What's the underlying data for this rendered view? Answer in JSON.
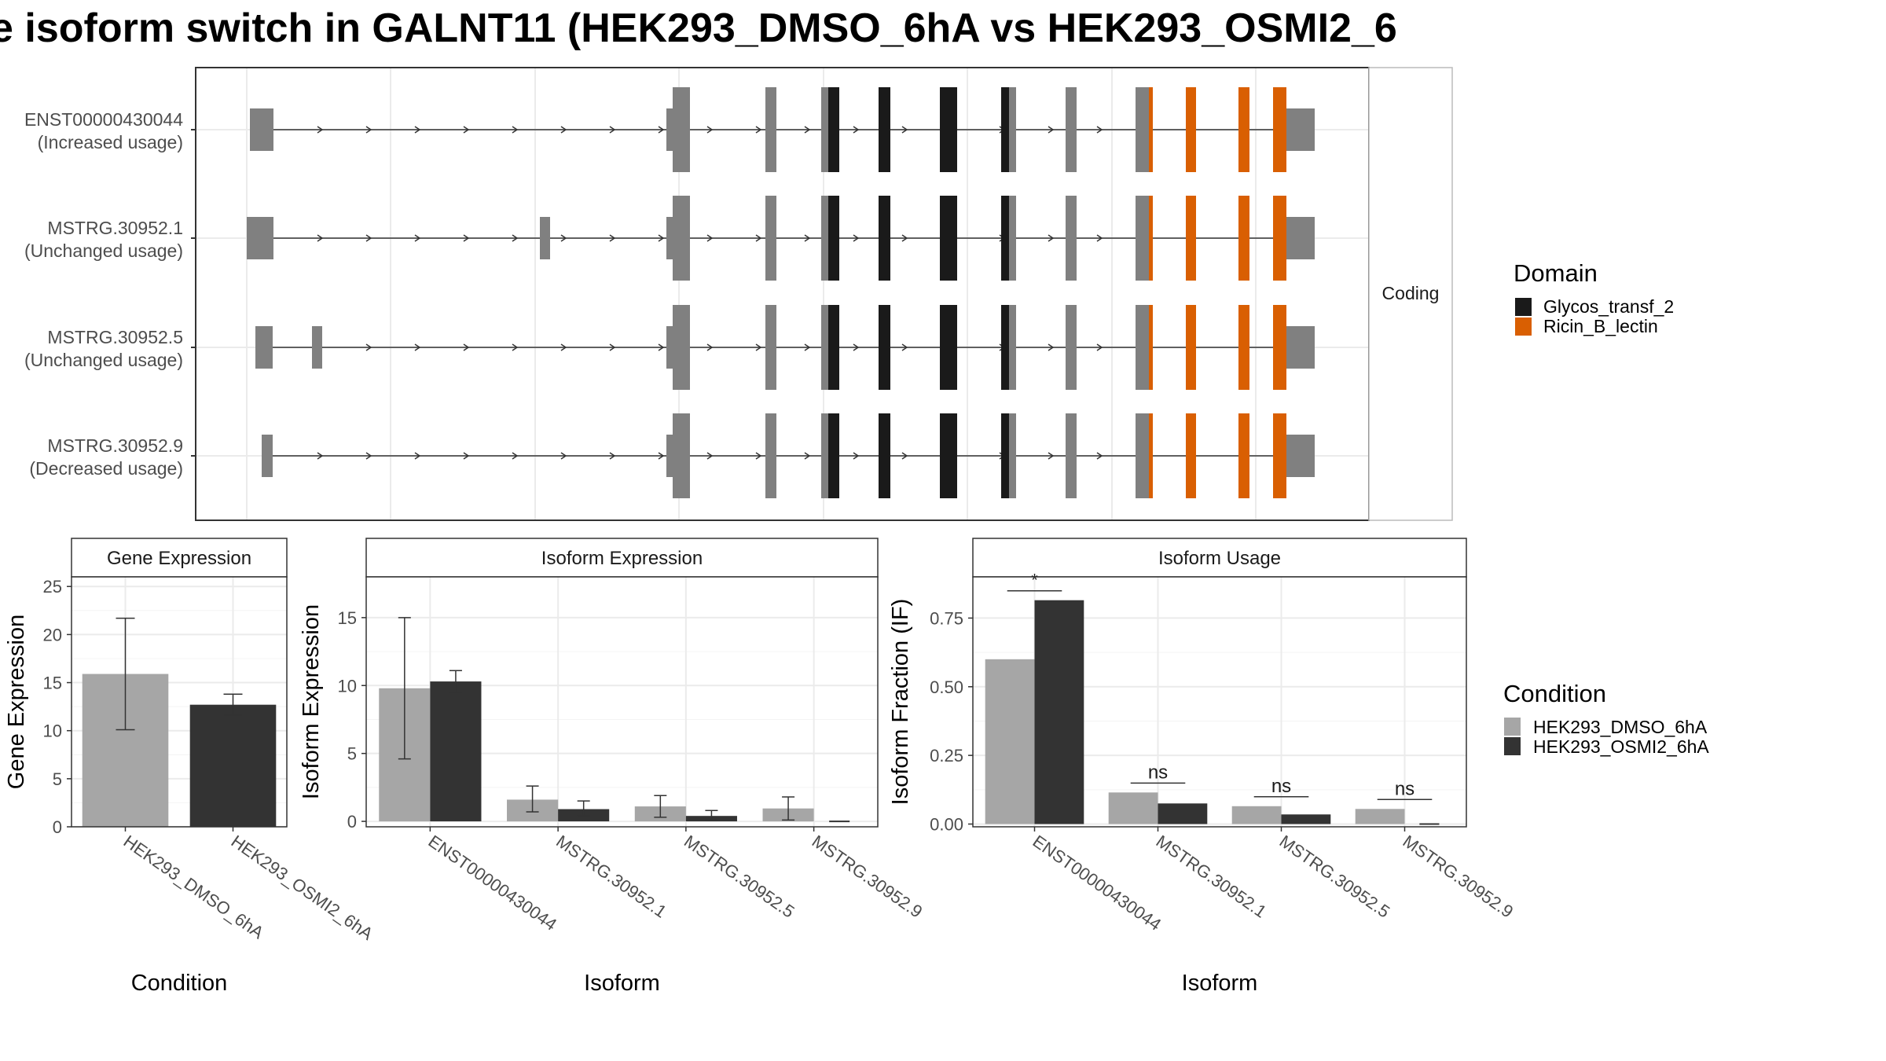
{
  "title": "e isoform switch in GALNT11 (HEK293_DMSO_6hA vs HEK293_OSMI2_6",
  "colors": {
    "dmso": "#a6a6a6",
    "osmi": "#333333",
    "exon": "#808080",
    "glycos": "#1a1a1a",
    "ricin": "#d95f02"
  },
  "structure": {
    "facet_label": "Coding",
    "transcripts": [
      {
        "id": "ENST00000430044",
        "usage": "(Increased usage)"
      },
      {
        "id": "MSTRG.30952.1",
        "usage": "(Unchanged usage)"
      },
      {
        "id": "MSTRG.30952.5",
        "usage": "(Unchanged usage)"
      },
      {
        "id": "MSTRG.30952.9",
        "usage": "(Decreased usage)"
      }
    ]
  },
  "legend_domain": {
    "title": "Domain",
    "items": [
      {
        "label": "Glycos_transf_2",
        "color": "#1a1a1a"
      },
      {
        "label": "Ricin_B_lectin",
        "color": "#d95f02"
      }
    ]
  },
  "legend_condition": {
    "title": "Condition",
    "items": [
      {
        "label": "HEK293_DMSO_6hA",
        "color": "#a6a6a6"
      },
      {
        "label": "HEK293_OSMI2_6hA",
        "color": "#333333"
      }
    ]
  },
  "chart_data": [
    {
      "type": "bar",
      "panel": "Gene Expression",
      "categories": [
        "HEK293_DMSO_6hA",
        "HEK293_OSMI2_6hA"
      ],
      "values": [
        15.9,
        12.7
      ],
      "errors": [
        [
          10.1,
          21.7
        ],
        [
          11.6,
          13.8
        ]
      ],
      "ylim": [
        0,
        26
      ],
      "yticks": [
        0,
        5,
        10,
        15,
        20,
        25
      ],
      "xlabel": "Condition",
      "ylabel": "Gene Expression"
    },
    {
      "type": "bar",
      "panel": "Isoform Expression",
      "categories": [
        "ENST00000430044",
        "MSTRG.30952.1",
        "MSTRG.30952.5",
        "MSTRG.30952.9"
      ],
      "series": [
        {
          "name": "HEK293_DMSO_6hA",
          "values": [
            9.8,
            1.6,
            1.1,
            0.95
          ],
          "errors": [
            [
              4.6,
              15.0
            ],
            [
              0.7,
              2.6
            ],
            [
              0.3,
              1.9
            ],
            [
              0.1,
              1.8
            ]
          ]
        },
        {
          "name": "HEK293_OSMI2_6hA",
          "values": [
            10.3,
            0.9,
            0.4,
            0.0
          ],
          "errors": [
            [
              9.5,
              11.1
            ],
            [
              0.4,
              1.5
            ],
            [
              0.1,
              0.8
            ],
            null
          ]
        }
      ],
      "ylim": [
        -0.4,
        18
      ],
      "yticks": [
        0,
        5,
        10,
        15
      ],
      "xlabel": "Isoform",
      "ylabel": "Isoform Expression"
    },
    {
      "type": "bar",
      "panel": "Isoform Usage",
      "categories": [
        "ENST00000430044",
        "MSTRG.30952.1",
        "MSTRG.30952.5",
        "MSTRG.30952.9"
      ],
      "series": [
        {
          "name": "HEK293_DMSO_6hA",
          "values": [
            0.6,
            0.115,
            0.065,
            0.055
          ]
        },
        {
          "name": "HEK293_OSMI2_6hA",
          "values": [
            0.815,
            0.075,
            0.035,
            0.0
          ]
        }
      ],
      "significance": [
        "*",
        "ns",
        "ns",
        "ns"
      ],
      "ylim": [
        -0.01,
        0.9
      ],
      "yticks": [
        0.0,
        0.25,
        0.5,
        0.75
      ],
      "ytick_labels": [
        "0.00",
        "0.25",
        "0.50",
        "0.75"
      ],
      "xlabel": "Isoform",
      "ylabel": "Isoform Fraction (IF)"
    }
  ]
}
